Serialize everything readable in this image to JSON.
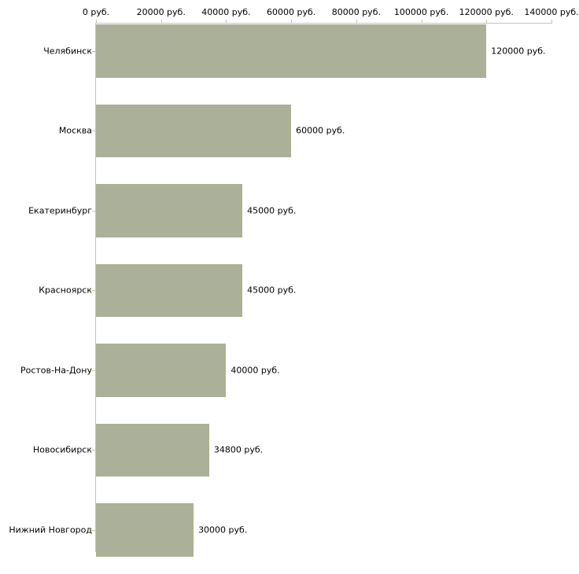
{
  "chart_data": {
    "type": "bar",
    "orientation": "horizontal",
    "title": "",
    "xlabel": "",
    "ylabel": "",
    "unit": "руб.",
    "grid": false,
    "legend": false,
    "categories": [
      "Челябинск",
      "Москва",
      "Екатеринбург",
      "Красноярск",
      "Ростов-На-Дону",
      "Новосибирск",
      "Нижний Новгород"
    ],
    "values": [
      120000,
      60000,
      45000,
      45000,
      40000,
      34800,
      30000
    ],
    "value_labels": [
      "120000 руб.",
      "60000 руб.",
      "45000 руб.",
      "45000 руб.",
      "40000 руб.",
      "34800 руб.",
      "30000 руб."
    ],
    "x_axis": {
      "position": "top",
      "min": 0,
      "max": 140000,
      "tick_step": 20000,
      "tick_values": [
        0,
        20000,
        40000,
        60000,
        80000,
        100000,
        120000,
        140000
      ],
      "tick_labels": [
        "0 руб.",
        "20000 руб.",
        "40000 руб.",
        "60000 руб.",
        "80000 руб.",
        "100000 руб.",
        "120000 руб.",
        "140000 руб."
      ]
    },
    "colors": {
      "bar_fill": "#abb098",
      "axis_line": "#c3c3c3",
      "tick_mark": "#c6ca9d",
      "text": "#000000",
      "background": "#ffffff"
    }
  }
}
